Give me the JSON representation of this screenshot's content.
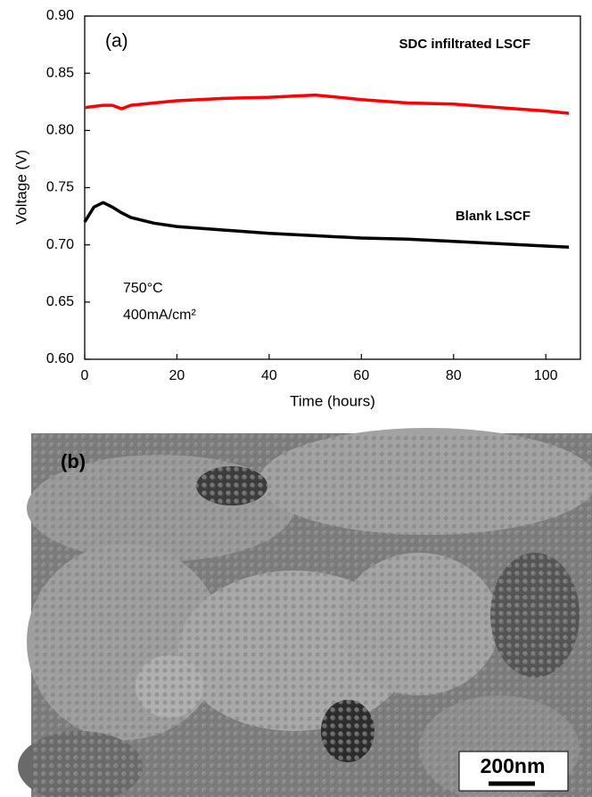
{
  "chart_data": {
    "type": "line",
    "xlabel": "Time (hours)",
    "ylabel": "Voltage (V)",
    "annotations": [
      "(a)",
      "750°C",
      "400mA/cm²"
    ],
    "x": [
      0,
      2,
      4,
      6,
      8,
      10,
      15,
      20,
      30,
      40,
      50,
      60,
      70,
      80,
      90,
      100,
      105
    ],
    "series": [
      {
        "name": "SDC infiltrated LSCF",
        "color": "#ff0000",
        "values": [
          0.82,
          0.821,
          0.822,
          0.822,
          0.819,
          0.822,
          0.824,
          0.826,
          0.828,
          0.829,
          0.831,
          0.827,
          0.824,
          0.823,
          0.82,
          0.817,
          0.815
        ]
      },
      {
        "name": "Blank LSCF",
        "color": "#000000",
        "values": [
          0.72,
          0.733,
          0.737,
          0.733,
          0.728,
          0.724,
          0.719,
          0.716,
          0.713,
          0.71,
          0.708,
          0.706,
          0.705,
          0.703,
          0.701,
          0.699,
          0.698
        ]
      }
    ],
    "xlim": [
      0,
      107.5
    ],
    "xticks": [
      0,
      20,
      40,
      60,
      80,
      100
    ],
    "ylim": [
      0.6,
      0.9
    ],
    "yticks": [
      {
        "value": 0.6,
        "label": "0.60"
      },
      0.65,
      {
        "value": 0.7,
        "label": "0.70"
      },
      0.75,
      {
        "value": 0.8,
        "label": "0.80"
      },
      0.85,
      {
        "value": 0.9,
        "label": "0.90"
      }
    ],
    "grid": false
  },
  "image": {
    "label": "(b)",
    "scale_bar": "200nm"
  }
}
